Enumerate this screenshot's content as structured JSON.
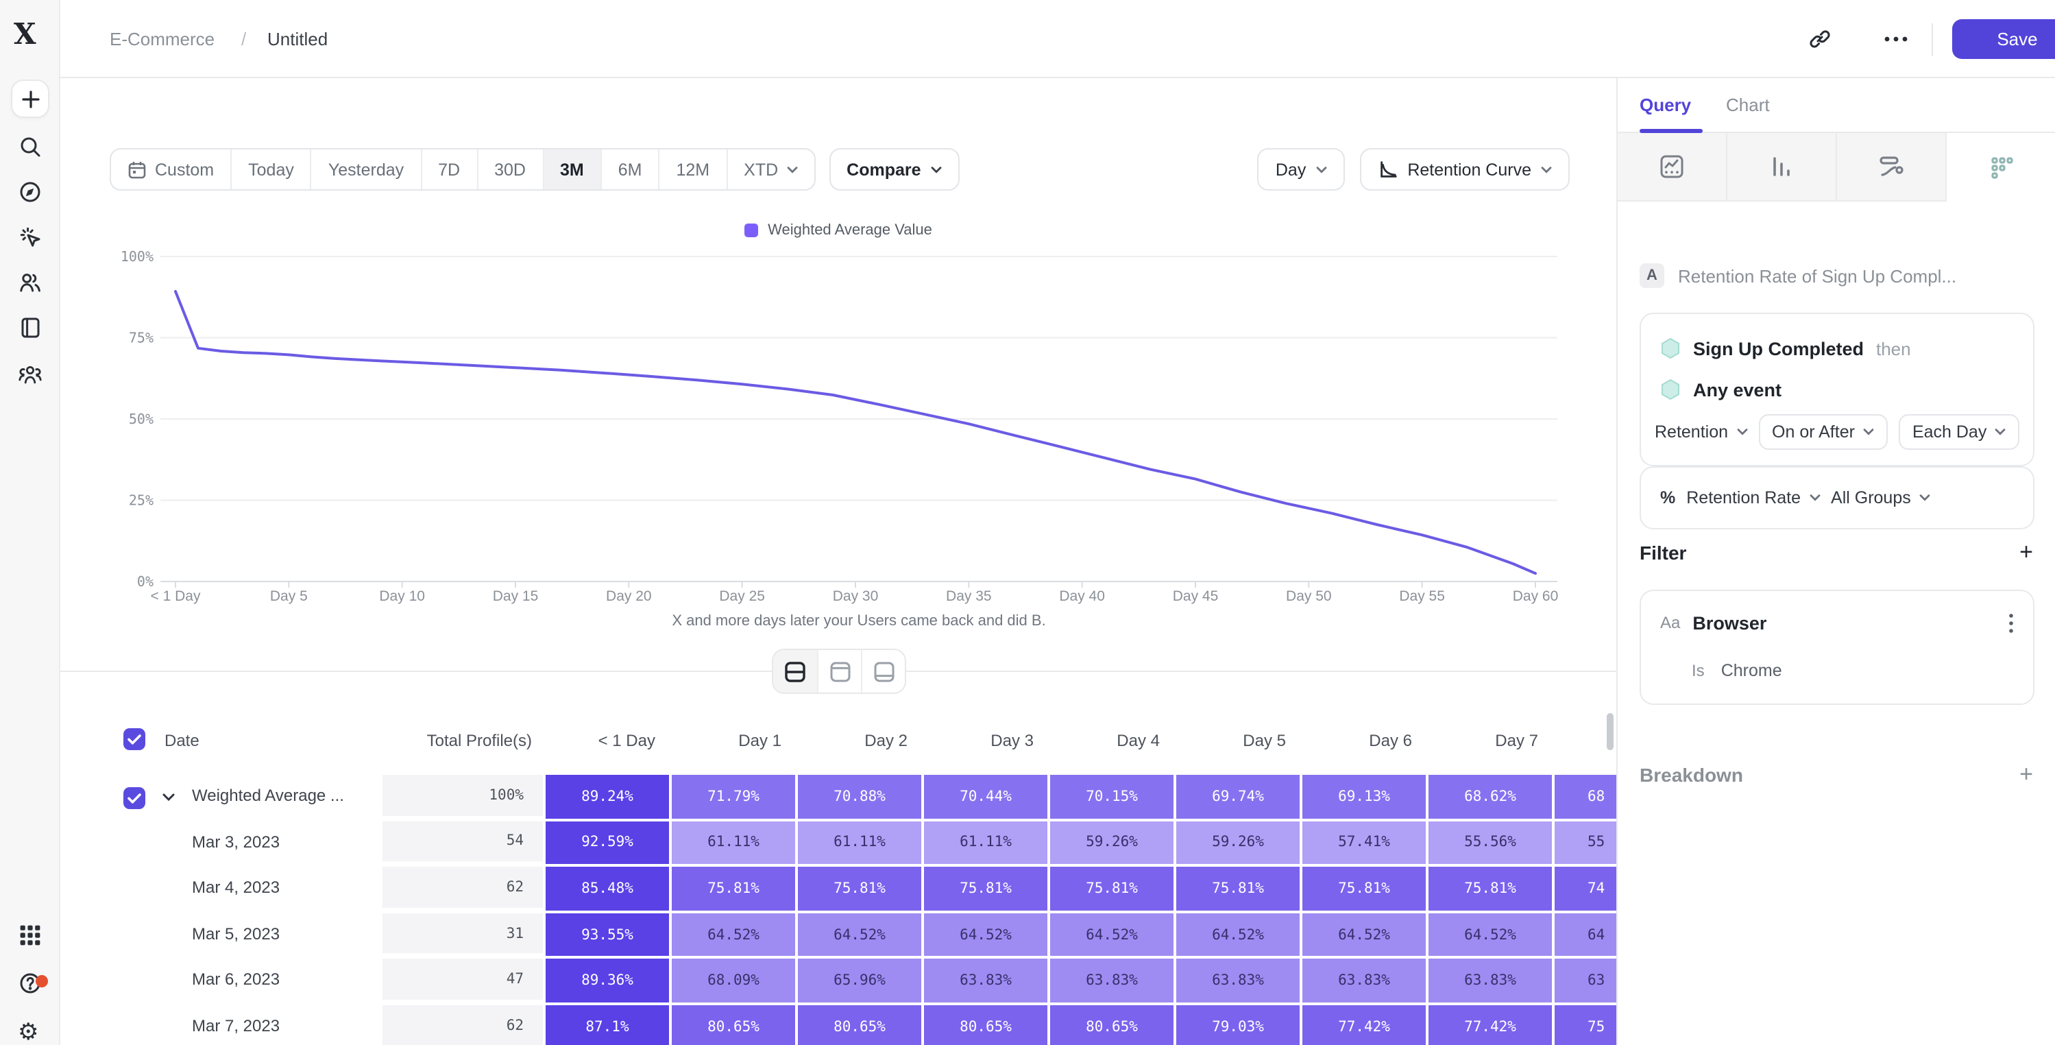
{
  "colors": {
    "accent": "#5244d9",
    "chart_line": "#6b5be4",
    "legend_swatch": "#7c5ffa",
    "cell_deep": "#5a41e6",
    "cell_dark": "#7b63ee",
    "cell_mid": "#8672f0",
    "cell_light": "#9e8cf3",
    "cell_lighter": "#b0a0f6",
    "cell_text_dark": "#38306b",
    "notification_dot": "#e4512e"
  },
  "topbar": {
    "breadcrumb_root": "E-Commerce",
    "breadcrumb_sep": "/",
    "breadcrumb_current": "Untitled",
    "save_label": "Save",
    "icons": [
      "link-icon",
      "ellipsis-icon"
    ]
  },
  "sidebar": {
    "icons": [
      "app-logo",
      "plus-icon",
      "search-icon",
      "compass-icon",
      "click-spark-icon",
      "users-icon",
      "notebook-icon",
      "team-icon",
      "apps-grid-icon",
      "help-icon",
      "settings-icon"
    ]
  },
  "toolbar": {
    "ranges": [
      {
        "label": "Custom",
        "icon": "calendar-icon"
      },
      {
        "label": "Today"
      },
      {
        "label": "Yesterday"
      },
      {
        "label": "7D"
      },
      {
        "label": "30D"
      },
      {
        "label": "3M"
      },
      {
        "label": "6M"
      },
      {
        "label": "12M"
      },
      {
        "label": "XTD",
        "chevron": true
      }
    ],
    "selected_range": "3M",
    "compare_label": "Compare",
    "granularity_label": "Day",
    "view_label": "Retention Curve"
  },
  "chart_data": {
    "type": "line",
    "legend": "Weighted Average Value",
    "ylim": [
      0,
      100
    ],
    "grid": true,
    "y_ticks": [
      {
        "label": "100%",
        "value": 100
      },
      {
        "label": "75%",
        "value": 75
      },
      {
        "label": "50%",
        "value": 50
      },
      {
        "label": "25%",
        "value": 25
      },
      {
        "label": "0%",
        "value": 0
      }
    ],
    "x_ticks": [
      {
        "label": "< 1 Day",
        "day": 0
      },
      {
        "label": "Day 5",
        "day": 5
      },
      {
        "label": "Day 10",
        "day": 10
      },
      {
        "label": "Day 15",
        "day": 15
      },
      {
        "label": "Day 20",
        "day": 20
      },
      {
        "label": "Day 25",
        "day": 25
      },
      {
        "label": "Day 30",
        "day": 30
      },
      {
        "label": "Day 35",
        "day": 35
      },
      {
        "label": "Day 40",
        "day": 40
      },
      {
        "label": "Day 45",
        "day": 45
      },
      {
        "label": "Day 50",
        "day": 50
      },
      {
        "label": "Day 55",
        "day": 55
      },
      {
        "label": "Day 60",
        "day": 60
      }
    ],
    "xlabel": "X and more days later your Users came back and did B.",
    "series": [
      {
        "name": "Weighted Average Value",
        "points": [
          [
            0,
            89.24
          ],
          [
            1,
            71.79
          ],
          [
            2,
            70.88
          ],
          [
            3,
            70.44
          ],
          [
            4,
            70.15
          ],
          [
            5,
            69.74
          ],
          [
            6,
            69.13
          ],
          [
            7,
            68.62
          ],
          [
            9,
            67.9
          ],
          [
            11,
            67.2
          ],
          [
            13,
            66.5
          ],
          [
            15,
            65.8
          ],
          [
            17,
            65.0
          ],
          [
            19,
            64.1
          ],
          [
            21,
            63.1
          ],
          [
            23,
            62.0
          ],
          [
            25,
            60.7
          ],
          [
            27,
            59.2
          ],
          [
            29,
            57.4
          ],
          [
            31,
            54.5
          ],
          [
            33,
            51.5
          ],
          [
            35,
            48.5
          ],
          [
            37,
            45.0
          ],
          [
            39,
            41.5
          ],
          [
            41,
            38.0
          ],
          [
            43,
            34.5
          ],
          [
            45,
            31.5
          ],
          [
            47,
            27.5
          ],
          [
            49,
            24.0
          ],
          [
            51,
            21.0
          ],
          [
            53,
            17.5
          ],
          [
            55,
            14.3
          ],
          [
            57,
            10.5
          ],
          [
            59,
            5.5
          ],
          [
            60,
            2.5
          ]
        ]
      }
    ]
  },
  "view_toggle": {
    "options": [
      "split-view",
      "table-view",
      "chart-view"
    ],
    "active": 0
  },
  "table": {
    "select_all_checked": true,
    "date_header": "Date",
    "total_header": "Total Profile(s)",
    "day_headers": [
      "< 1 Day",
      "Day 1",
      "Day 2",
      "Day 3",
      "Day 4",
      "Day 5",
      "Day 6",
      "Day 7"
    ],
    "rows": [
      {
        "label": "Weighted Average ...",
        "expandable": true,
        "checked": true,
        "total": "100%",
        "values": [
          89.24,
          71.79,
          70.88,
          70.44,
          70.15,
          69.74,
          69.13,
          68.62
        ],
        "partial": "68"
      },
      {
        "label": "Mar 3, 2023",
        "total": "54",
        "values": [
          92.59,
          61.11,
          61.11,
          61.11,
          59.26,
          59.26,
          57.41,
          55.56
        ],
        "partial": "55"
      },
      {
        "label": "Mar 4, 2023",
        "total": "62",
        "values": [
          85.48,
          75.81,
          75.81,
          75.81,
          75.81,
          75.81,
          75.81,
          75.81
        ],
        "partial": "74"
      },
      {
        "label": "Mar 5, 2023",
        "total": "31",
        "values": [
          93.55,
          64.52,
          64.52,
          64.52,
          64.52,
          64.52,
          64.52,
          64.52
        ],
        "partial": "64"
      },
      {
        "label": "Mar 6, 2023",
        "total": "47",
        "values": [
          89.36,
          68.09,
          65.96,
          63.83,
          63.83,
          63.83,
          63.83,
          63.83
        ],
        "partial": "63"
      },
      {
        "label": "Mar 7, 2023",
        "total": "62",
        "values": [
          87.1,
          80.65,
          80.65,
          80.65,
          80.65,
          79.03,
          77.42,
          77.42
        ],
        "partial": "75"
      }
    ]
  },
  "panel": {
    "tabs": [
      {
        "label": "Query"
      },
      {
        "label": "Chart"
      }
    ],
    "active_tab": "Query",
    "chart_type_tabs": [
      "line-chart-icon",
      "bar-chart-icon",
      "flow-chart-icon",
      "retention-grid-icon"
    ],
    "active_chart_type": 3,
    "query": {
      "step_badge": "A",
      "title": "Retention Rate of Sign Up Compl...",
      "event1": "Sign Up Completed",
      "event1_suffix": "then",
      "event2": "Any event",
      "mode_dropdown": "Retention",
      "window_dropdown": "On or After",
      "interval_dropdown": "Each Day",
      "measure_icon": "%",
      "measure_dropdown": "Retention Rate",
      "groups_dropdown": "All Groups"
    },
    "filter": {
      "heading": "Filter",
      "add": "+",
      "property_type": "Aa",
      "property": "Browser",
      "operator": "Is",
      "value": "Chrome",
      "menu_icon": "kebab-icon"
    },
    "breakdown": {
      "heading": "Breakdown",
      "add": "+"
    }
  }
}
